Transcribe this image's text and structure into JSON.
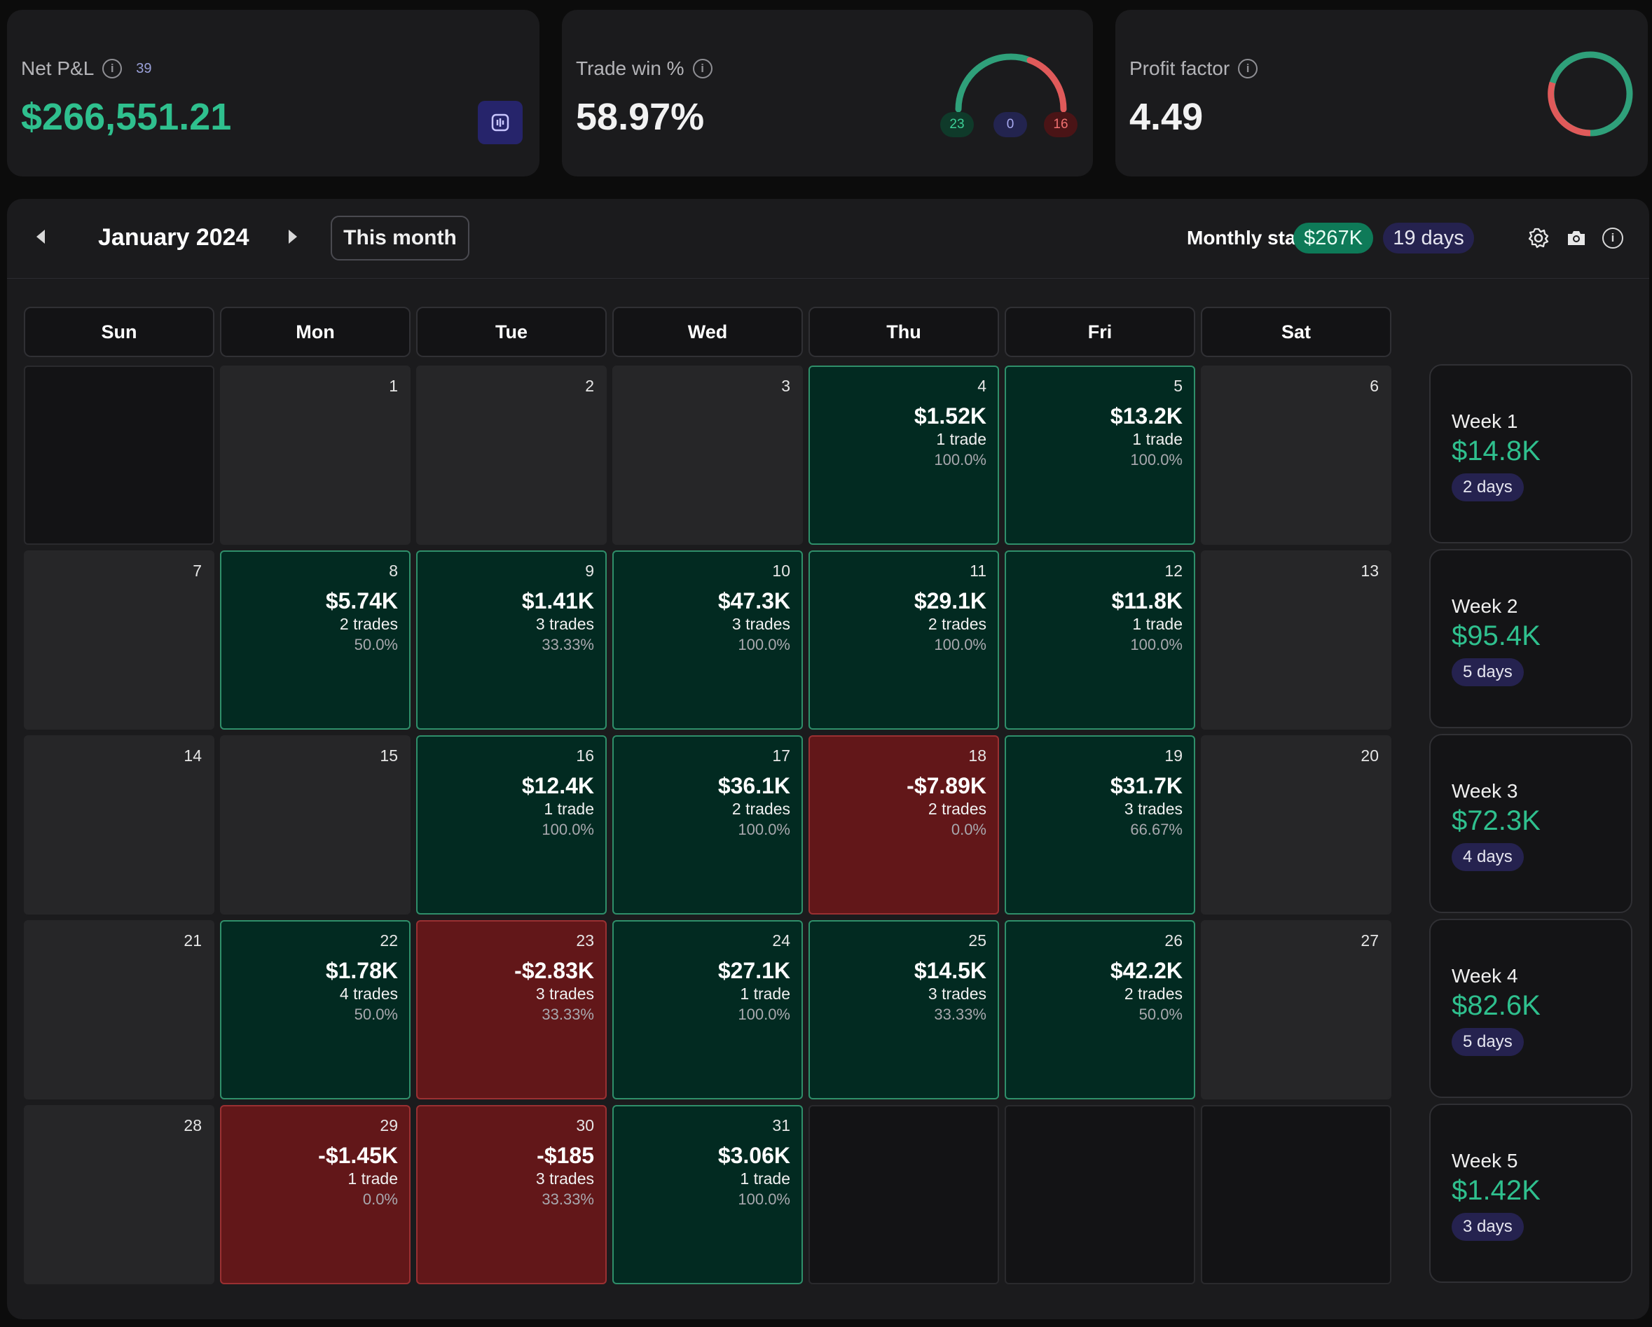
{
  "net_pnl": {
    "label": "Net P&L",
    "count": "39",
    "value": "$266,551.21"
  },
  "trade_win": {
    "label": "Trade win %",
    "value": "58.97%",
    "wins": "23",
    "breakeven": "0",
    "losses": "16"
  },
  "profit_factor": {
    "label": "Profit factor",
    "value": "4.49"
  },
  "calendar": {
    "title": "January 2024",
    "this_month": "This month",
    "monthly_label": "Monthly stats:",
    "monthly_pnl": "$267K",
    "monthly_days": "19 days",
    "weekdays": [
      "Sun",
      "Mon",
      "Tue",
      "Wed",
      "Thu",
      "Fri",
      "Sat"
    ],
    "days": {
      "1": {
        "day": "1"
      },
      "2": {
        "day": "2"
      },
      "3": {
        "day": "3"
      },
      "4": {
        "day": "4",
        "amount": "$1.52K",
        "trades": "1 trade",
        "pct": "100.0%"
      },
      "5": {
        "day": "5",
        "amount": "$13.2K",
        "trades": "1 trade",
        "pct": "100.0%"
      },
      "6": {
        "day": "6"
      },
      "7": {
        "day": "7"
      },
      "8": {
        "day": "8",
        "amount": "$5.74K",
        "trades": "2 trades",
        "pct": "50.0%"
      },
      "9": {
        "day": "9",
        "amount": "$1.41K",
        "trades": "3 trades",
        "pct": "33.33%"
      },
      "10": {
        "day": "10",
        "amount": "$47.3K",
        "trades": "3 trades",
        "pct": "100.0%"
      },
      "11": {
        "day": "11",
        "amount": "$29.1K",
        "trades": "2 trades",
        "pct": "100.0%"
      },
      "12": {
        "day": "12",
        "amount": "$11.8K",
        "trades": "1 trade",
        "pct": "100.0%"
      },
      "13": {
        "day": "13"
      },
      "14": {
        "day": "14"
      },
      "15": {
        "day": "15"
      },
      "16": {
        "day": "16",
        "amount": "$12.4K",
        "trades": "1 trade",
        "pct": "100.0%"
      },
      "17": {
        "day": "17",
        "amount": "$36.1K",
        "trades": "2 trades",
        "pct": "100.0%"
      },
      "18": {
        "day": "18",
        "amount": "-$7.89K",
        "trades": "2 trades",
        "pct": "0.0%"
      },
      "19": {
        "day": "19",
        "amount": "$31.7K",
        "trades": "3 trades",
        "pct": "66.67%"
      },
      "20": {
        "day": "20"
      },
      "21": {
        "day": "21"
      },
      "22": {
        "day": "22",
        "amount": "$1.78K",
        "trades": "4 trades",
        "pct": "50.0%"
      },
      "23": {
        "day": "23",
        "amount": "-$2.83K",
        "trades": "3 trades",
        "pct": "33.33%"
      },
      "24": {
        "day": "24",
        "amount": "$27.1K",
        "trades": "1 trade",
        "pct": "100.0%"
      },
      "25": {
        "day": "25",
        "amount": "$14.5K",
        "trades": "3 trades",
        "pct": "33.33%"
      },
      "26": {
        "day": "26",
        "amount": "$42.2K",
        "trades": "2 trades",
        "pct": "50.0%"
      },
      "27": {
        "day": "27"
      },
      "28": {
        "day": "28"
      },
      "29": {
        "day": "29",
        "amount": "-$1.45K",
        "trades": "1 trade",
        "pct": "0.0%"
      },
      "30": {
        "day": "30",
        "amount": "-$185",
        "trades": "3 trades",
        "pct": "33.33%"
      },
      "31": {
        "day": "31",
        "amount": "$3.06K",
        "trades": "1 trade",
        "pct": "100.0%"
      }
    },
    "weeks": [
      {
        "label": "Week 1",
        "pnl": "$14.8K",
        "days": "2 days"
      },
      {
        "label": "Week 2",
        "pnl": "$95.4K",
        "days": "5 days"
      },
      {
        "label": "Week 3",
        "pnl": "$72.3K",
        "days": "4 days"
      },
      {
        "label": "Week 4",
        "pnl": "$82.6K",
        "days": "5 days"
      },
      {
        "label": "Week 5",
        "pnl": "$1.42K",
        "days": "3 days"
      }
    ]
  },
  "colors": {
    "profit": "#2fc08e",
    "loss": "#e05a5a",
    "win_cell": "#022a21",
    "loss_cell": "#621719",
    "accent": "#26246b"
  },
  "icons": [
    "info-icon",
    "chart-icon",
    "settings-icon",
    "camera-icon",
    "chevron-left-icon",
    "chevron-right-icon"
  ]
}
